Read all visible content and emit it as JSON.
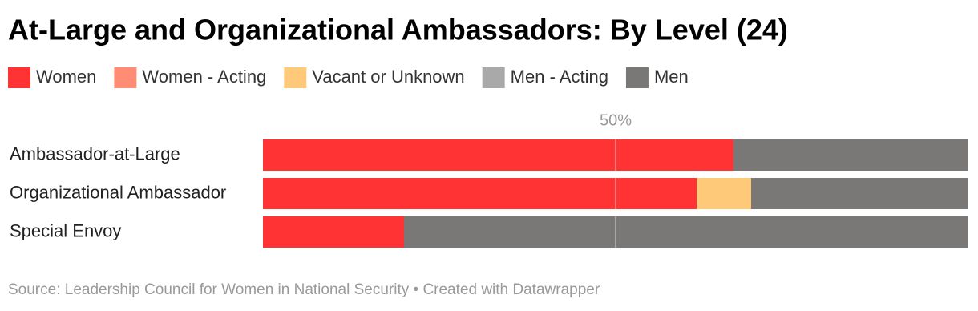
{
  "chart_data": {
    "type": "stacked-bar-horizontal",
    "title": "At-Large and Organizational Ambassadors: By Level (24)",
    "categories": [
      "Ambassador-at-Large",
      "Organizational Ambassador",
      "Special Envoy"
    ],
    "series": [
      {
        "name": "Women",
        "color": "#ff3333",
        "values": [
          66.7,
          61.5,
          20
        ]
      },
      {
        "name": "Women - Acting",
        "color": "#ff8c75",
        "values": [
          0,
          0,
          0
        ]
      },
      {
        "name": "Vacant or Unknown",
        "color": "#fec979",
        "values": [
          0,
          7.7,
          0
        ]
      },
      {
        "name": "Men - Acting",
        "color": "#aaa9a9",
        "values": [
          0,
          0,
          0
        ]
      },
      {
        "name": "Men",
        "color": "#7a7777",
        "values": [
          33.3,
          30.8,
          80
        ]
      }
    ],
    "xlim": [
      0,
      100
    ],
    "xticks": [
      {
        "value": 50,
        "label": "50%"
      }
    ],
    "grid": true,
    "source": "Source: Leadership Council for Women in National Security • Created with Datawrapper"
  }
}
